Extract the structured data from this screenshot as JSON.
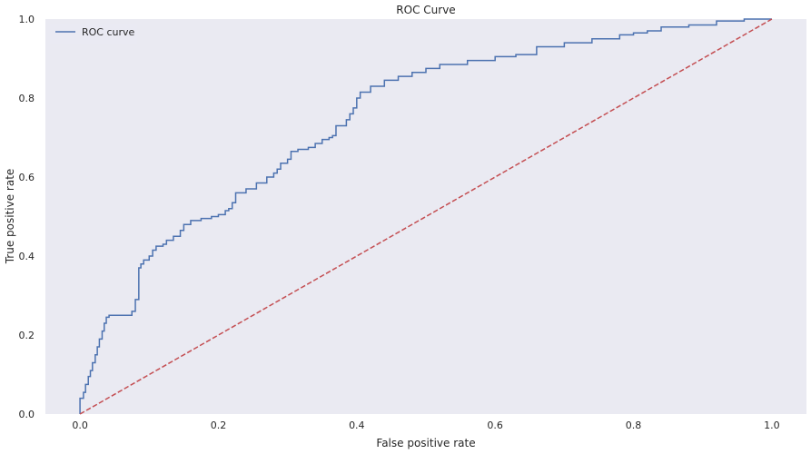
{
  "chart_data": {
    "type": "line",
    "title": "ROC Curve",
    "xlabel": "False positive rate",
    "ylabel": "True positive rate",
    "xlim": [
      -0.05,
      1.05
    ],
    "ylim": [
      0.0,
      1.0
    ],
    "x_ticks": [
      0.0,
      0.2,
      0.4,
      0.6,
      0.8,
      1.0
    ],
    "x_tick_labels": [
      "0.0",
      "0.2",
      "0.4",
      "0.6",
      "0.8",
      "1.0"
    ],
    "y_ticks": [
      0.0,
      0.2,
      0.4,
      0.6,
      0.8,
      1.0
    ],
    "y_tick_labels": [
      "0.0",
      "0.2",
      "0.4",
      "0.6",
      "0.8",
      "1.0"
    ],
    "grid": false,
    "legend_position": "top-left",
    "background_color": "#eaeaf2",
    "series": [
      {
        "name": "ROC curve",
        "style": "step",
        "color": "#4c72b0",
        "x": [
          0.0,
          0.0,
          0.005,
          0.008,
          0.012,
          0.015,
          0.018,
          0.022,
          0.025,
          0.028,
          0.032,
          0.035,
          0.038,
          0.042,
          0.045,
          0.052,
          0.06,
          0.075,
          0.08,
          0.085,
          0.088,
          0.092,
          0.1,
          0.105,
          0.11,
          0.12,
          0.125,
          0.135,
          0.145,
          0.15,
          0.16,
          0.175,
          0.19,
          0.2,
          0.21,
          0.215,
          0.22,
          0.225,
          0.24,
          0.255,
          0.27,
          0.28,
          0.285,
          0.29,
          0.3,
          0.305,
          0.315,
          0.33,
          0.34,
          0.35,
          0.36,
          0.365,
          0.37,
          0.385,
          0.39,
          0.395,
          0.4,
          0.405,
          0.42,
          0.44,
          0.46,
          0.48,
          0.5,
          0.52,
          0.56,
          0.6,
          0.63,
          0.66,
          0.7,
          0.74,
          0.78,
          0.8,
          0.82,
          0.84,
          0.88,
          0.92,
          0.96,
          1.0
        ],
        "y": [
          0.0,
          0.04,
          0.055,
          0.075,
          0.095,
          0.11,
          0.13,
          0.15,
          0.17,
          0.19,
          0.21,
          0.23,
          0.245,
          0.25,
          0.25,
          0.25,
          0.25,
          0.26,
          0.29,
          0.37,
          0.38,
          0.39,
          0.4,
          0.415,
          0.425,
          0.43,
          0.44,
          0.45,
          0.465,
          0.48,
          0.49,
          0.495,
          0.5,
          0.505,
          0.515,
          0.52,
          0.535,
          0.56,
          0.57,
          0.585,
          0.6,
          0.61,
          0.62,
          0.635,
          0.645,
          0.665,
          0.67,
          0.675,
          0.685,
          0.695,
          0.7,
          0.705,
          0.73,
          0.745,
          0.76,
          0.775,
          0.8,
          0.815,
          0.83,
          0.845,
          0.855,
          0.865,
          0.875,
          0.885,
          0.895,
          0.905,
          0.91,
          0.93,
          0.94,
          0.95,
          0.96,
          0.965,
          0.97,
          0.98,
          0.985,
          0.995,
          1.0,
          1.0
        ]
      },
      {
        "name": "",
        "style": "dashed",
        "color": "#c44e52",
        "x": [
          0.0,
          1.0
        ],
        "y": [
          0.0,
          1.0
        ]
      }
    ]
  }
}
